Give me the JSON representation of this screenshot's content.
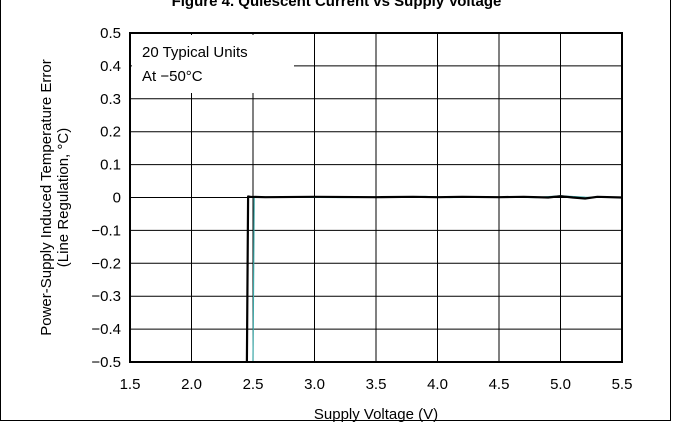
{
  "figure": {
    "title": "Figure 4. Quiescent Current vs Supply Voltage"
  },
  "chart_data": {
    "type": "line",
    "xlabel": "Supply Voltage (V)",
    "ylabel": "Power-Supply Induced Temperature Error",
    "ylabel2": "(Line Regulation, °C)",
    "xlim": [
      1.5,
      5.5
    ],
    "ylim": [
      -0.5,
      0.5
    ],
    "x_ticks": [
      "1.5",
      "2.0",
      "2.5",
      "3.0",
      "3.5",
      "4.0",
      "4.5",
      "5.0",
      "5.5"
    ],
    "y_ticks": [
      "0.5",
      "0.4",
      "0.3",
      "0.2",
      "0.1",
      "0",
      "−0.1",
      "−0.2",
      "−0.3",
      "−0.4",
      "−0.5"
    ],
    "grid": true,
    "annotations": [
      "20 Typical Units",
      "At −50°C"
    ],
    "series": [
      {
        "color": "#000000",
        "x": [
          2.45,
          2.46,
          2.48,
          2.6,
          3.0,
          3.5,
          3.8,
          4.0,
          4.2,
          4.5,
          4.7,
          4.9,
          5.0,
          5.1,
          5.2,
          5.3,
          5.5
        ],
        "y": [
          -0.5,
          0.003,
          0.002,
          0.001,
          0.002,
          0.001,
          0.002,
          0.001,
          0.002,
          0.001,
          0.002,
          0.0,
          0.004,
          0.0,
          -0.003,
          0.002,
          0.0
        ]
      },
      {
        "color": "#3aa6a6",
        "x": [
          2.5,
          2.51,
          2.7,
          3.2,
          3.6,
          3.9,
          4.1,
          4.4,
          4.8,
          5.0,
          5.2,
          5.5
        ],
        "y": [
          -0.5,
          0.002,
          0.001,
          0.0,
          0.001,
          0.003,
          0.0,
          0.001,
          0.0,
          0.005,
          0.001,
          0.0
        ]
      }
    ]
  }
}
